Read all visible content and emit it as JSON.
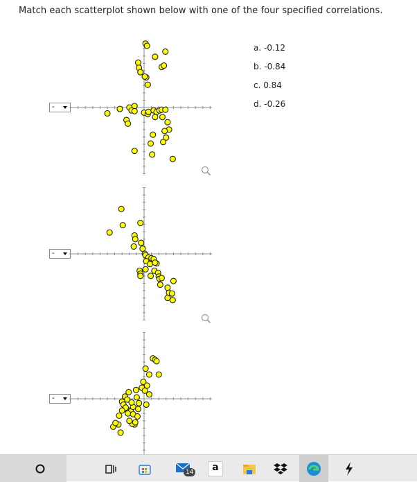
{
  "instructions": "Match each scatterplot shown below with one of the four specified correlations.",
  "dropdown_value": "-",
  "options": [
    "a. -0.12",
    "b. -0.84",
    "c. 0.84",
    "d. -0.26"
  ],
  "chart_data": [
    {
      "type": "scatter",
      "points": [
        [
          0.2,
          8.7
        ],
        [
          0.4,
          8.4
        ],
        [
          2.9,
          7.6
        ],
        [
          1.5,
          6.9
        ],
        [
          -0.8,
          6.1
        ],
        [
          -0.7,
          5.4
        ],
        [
          -0.5,
          4.8
        ],
        [
          0.3,
          4.1
        ],
        [
          2.4,
          5.5
        ],
        [
          2.7,
          5.7
        ],
        [
          0.1,
          4.2
        ],
        [
          0.5,
          3.1
        ],
        [
          -1.3,
          0.2
        ],
        [
          -2.0,
          0.0
        ],
        [
          -3.3,
          -0.2
        ],
        [
          -1.7,
          -0.4
        ],
        [
          -1.3,
          -0.5
        ],
        [
          0.0,
          -0.7
        ],
        [
          0.5,
          -0.9
        ],
        [
          0.6,
          -0.6
        ],
        [
          1.3,
          -0.4
        ],
        [
          1.7,
          -0.6
        ],
        [
          2.1,
          -0.4
        ],
        [
          2.4,
          -0.3
        ],
        [
          2.9,
          -0.3
        ],
        [
          1.5,
          -1.3
        ],
        [
          2.5,
          -1.3
        ],
        [
          3.2,
          -2.0
        ],
        [
          3.4,
          -3.0
        ],
        [
          2.8,
          -3.2
        ],
        [
          3.0,
          -4.1
        ],
        [
          2.6,
          -4.7
        ],
        [
          1.2,
          -3.7
        ],
        [
          0.9,
          -4.9
        ],
        [
          1.1,
          -6.4
        ],
        [
          -1.3,
          -5.9
        ],
        [
          -2.4,
          -1.7
        ],
        [
          -2.2,
          -2.2
        ],
        [
          -5.0,
          -0.8
        ],
        [
          3.9,
          -7.0
        ]
      ]
    },
    {
      "type": "scatter",
      "points": [
        [
          -3.1,
          6.1
        ],
        [
          -2.9,
          3.9
        ],
        [
          -4.7,
          2.9
        ],
        [
          -0.5,
          4.2
        ],
        [
          -1.3,
          2.5
        ],
        [
          -1.2,
          2.0
        ],
        [
          -0.4,
          1.5
        ],
        [
          -1.4,
          1.0
        ],
        [
          -0.2,
          0.7
        ],
        [
          0.1,
          0.0
        ],
        [
          0.2,
          -0.2
        ],
        [
          0.6,
          -0.5
        ],
        [
          1.0,
          -0.6
        ],
        [
          1.3,
          -0.7
        ],
        [
          0.3,
          -1.0
        ],
        [
          1.7,
          -1.3
        ],
        [
          0.8,
          -1.4
        ],
        [
          1.5,
          -1.2
        ],
        [
          0.2,
          -2.1
        ],
        [
          -0.6,
          -2.3
        ],
        [
          -0.5,
          -2.7
        ],
        [
          -0.5,
          -3.0
        ],
        [
          1.4,
          -2.3
        ],
        [
          0.9,
          -3.0
        ],
        [
          1.9,
          -2.6
        ],
        [
          2.0,
          -3.1
        ],
        [
          2.1,
          -3.4
        ],
        [
          2.4,
          -3.3
        ],
        [
          2.2,
          -4.2
        ],
        [
          4.0,
          -3.7
        ],
        [
          3.2,
          -4.6
        ],
        [
          3.4,
          -5.3
        ],
        [
          3.8,
          -5.4
        ],
        [
          3.2,
          -6.0
        ],
        [
          3.9,
          -6.3
        ]
      ]
    },
    {
      "type": "scatter",
      "points": [
        [
          1.2,
          5.5
        ],
        [
          1.5,
          5.3
        ],
        [
          1.7,
          5.1
        ],
        [
          0.2,
          4.1
        ],
        [
          0.7,
          3.3
        ],
        [
          -0.1,
          2.3
        ],
        [
          0.4,
          1.8
        ],
        [
          -0.3,
          1.5
        ],
        [
          0.1,
          1.1
        ],
        [
          0.7,
          0.6
        ],
        [
          -1.1,
          1.2
        ],
        [
          -2.1,
          0.9
        ],
        [
          -2.6,
          0.3
        ],
        [
          -2.3,
          -0.1
        ],
        [
          -3.0,
          -0.4
        ],
        [
          -2.8,
          -0.8
        ],
        [
          -2.3,
          -1.5
        ],
        [
          -1.8,
          -1.7
        ],
        [
          -2.5,
          -1.2
        ],
        [
          -3.0,
          -1.6
        ],
        [
          -2.2,
          -2.0
        ],
        [
          -1.5,
          -2.1
        ],
        [
          -0.9,
          -2.4
        ],
        [
          -1.3,
          -3.5
        ],
        [
          -1.6,
          -3.4
        ],
        [
          -3.5,
          -3.5
        ],
        [
          -4.2,
          -3.8
        ],
        [
          -3.9,
          -3.3
        ],
        [
          -3.2,
          -4.6
        ],
        [
          -1.2,
          -3.2
        ],
        [
          -1.5,
          -1.1
        ],
        [
          0.3,
          -0.8
        ],
        [
          -0.7,
          -0.6
        ],
        [
          2.0,
          3.3
        ],
        [
          -1.0,
          0.2
        ],
        [
          -0.8,
          -1.4
        ],
        [
          -1.7,
          -0.5
        ],
        [
          -3.4,
          -2.3
        ],
        [
          -2.0,
          -3.0
        ]
      ]
    }
  ],
  "taskbar": {
    "mail_badge": "14",
    "amazon_letter": "a"
  }
}
